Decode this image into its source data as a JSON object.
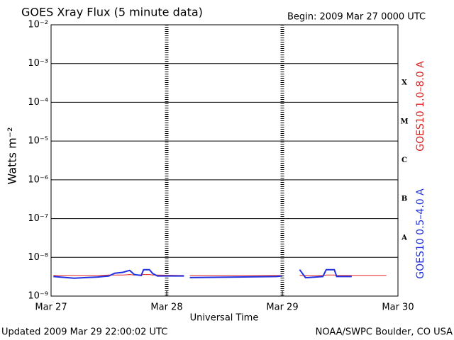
{
  "chart_data": {
    "type": "line",
    "title": "GOES Xray Flux (5 minute data)",
    "subtitle": "Begin:  2009 Mar 27 0000 UTC",
    "ylabel": "Watts m⁻²",
    "xlabel": "Universal Time",
    "footer_left": "Updated 2009 Mar 29 22:00:02 UTC",
    "footer_right": "NOAA/SWPC Boulder, CO USA",
    "log_scale": true,
    "grid": true,
    "xlim": [
      27,
      30
    ],
    "xticks": [
      {
        "value": 27,
        "label": "Mar 27"
      },
      {
        "value": 28,
        "label": "Mar 28"
      },
      {
        "value": 29,
        "label": "Mar 29"
      },
      {
        "value": 30,
        "label": "Mar 30"
      }
    ],
    "ylim": [
      1e-09,
      0.01
    ],
    "yticks": [
      {
        "value": 1e-09,
        "label": "10⁻⁹"
      },
      {
        "value": 1e-08,
        "label": "10⁻⁸"
      },
      {
        "value": 1e-07,
        "label": "10⁻⁷"
      },
      {
        "value": 1e-06,
        "label": "10⁻⁶"
      },
      {
        "value": 1e-05,
        "label": "10⁻⁵"
      },
      {
        "value": 0.0001,
        "label": "10⁻⁴"
      },
      {
        "value": 0.001,
        "label": "10⁻³"
      },
      {
        "value": 0.01,
        "label": "10⁻²"
      }
    ],
    "class_labels": [
      "A",
      "B",
      "C",
      "M",
      "X"
    ],
    "x": [
      27.02,
      27.2,
      27.4,
      27.5,
      27.55,
      27.62,
      27.68,
      27.72,
      27.78,
      27.8,
      27.85,
      27.88,
      27.92,
      28.15,
      28.18,
      28.2,
      28.6,
      28.95,
      29.0,
      29.12,
      29.15,
      29.2,
      29.22,
      29.35,
      29.38,
      29.45,
      29.47,
      29.6,
      29.9
    ],
    "series": [
      {
        "name": "GOES10 1.0–8.0 A",
        "color": "#e02020",
        "values": [
          3.4e-09,
          3.4e-09,
          3.4e-09,
          3.5e-09,
          3.5e-09,
          3.5e-09,
          3.6e-09,
          3.5e-09,
          3.5e-09,
          3.6e-09,
          3.6e-09,
          3.5e-09,
          3.5e-09,
          3.4e-09,
          null,
          3.4e-09,
          3.4e-09,
          3.4e-09,
          3.4e-09,
          null,
          3.4e-09,
          3.4e-09,
          3.4e-09,
          3.4e-09,
          3.5e-09,
          3.5e-09,
          3.4e-09,
          3.4e-09,
          3.4e-09
        ]
      },
      {
        "name": "GOES10 0.5–4.0 A",
        "color": "#2030e0",
        "values": [
          3.2e-09,
          2.9e-09,
          3.1e-09,
          3.3e-09,
          3.9e-09,
          4.1e-09,
          4.6e-09,
          3.6e-09,
          3.4e-09,
          4.8e-09,
          4.8e-09,
          3.8e-09,
          3.3e-09,
          3.3e-09,
          null,
          3e-09,
          3.1e-09,
          3.2e-09,
          3.3e-09,
          null,
          4.8e-09,
          3e-09,
          3e-09,
          3.2e-09,
          4.8e-09,
          4.8e-09,
          3.2e-09,
          3.2e-09,
          null
        ]
      }
    ]
  }
}
